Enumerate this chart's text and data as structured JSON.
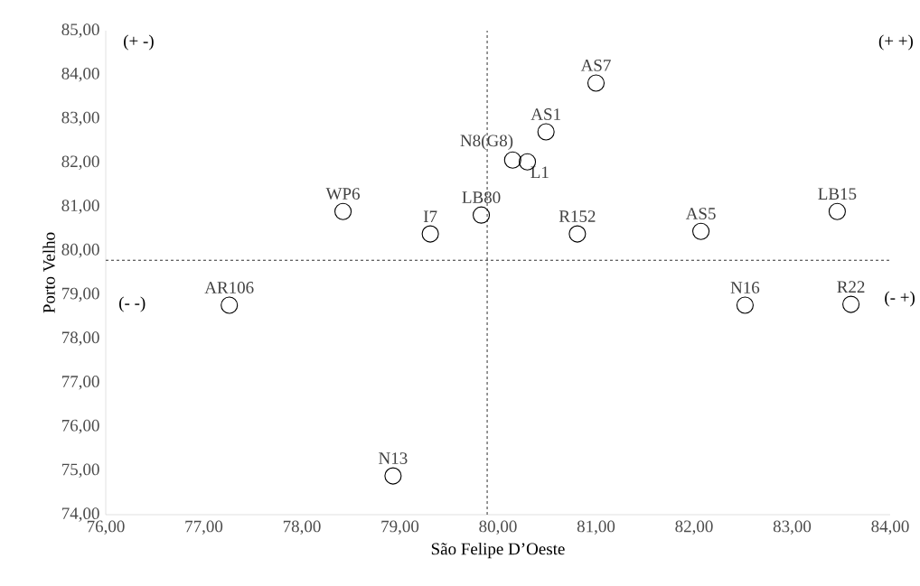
{
  "chart_data": {
    "type": "scatter",
    "xlabel": "São Felipe D’Oeste",
    "ylabel": "Porto Velho",
    "x": [
      77.26,
      78.42,
      79.31,
      79.83,
      80.15,
      80.3,
      80.49,
      81.0,
      80.81,
      82.07,
      83.46,
      82.52,
      83.6,
      78.93
    ],
    "values": [
      78.76,
      80.89,
      80.38,
      80.81,
      82.06,
      82.02,
      82.7,
      83.81,
      80.38,
      80.44,
      80.89,
      78.76,
      78.78,
      74.88
    ],
    "value_labels": [
      "AR106",
      "WP6",
      "I7",
      "LB80",
      "N8(G8)",
      "L1",
      "AS1",
      "AS7",
      "R152",
      "AS5",
      "LB15",
      "N16",
      "R22",
      "N13"
    ],
    "color": "#000000",
    "marker": "circle",
    "xlim": [
      76,
      84
    ],
    "ylim": [
      74,
      85
    ],
    "xticks": [
      {
        "value": 76,
        "label": "76,00"
      },
      {
        "value": 77,
        "label": "77,00"
      },
      {
        "value": 78,
        "label": "78,00"
      },
      {
        "value": 79,
        "label": "79,00"
      },
      {
        "value": 80,
        "label": "80,00"
      },
      {
        "value": 81,
        "label": "81,00"
      },
      {
        "value": 82,
        "label": "82,00"
      },
      {
        "value": 83,
        "label": "83,00"
      },
      {
        "value": 84,
        "label": "84,00"
      }
    ],
    "yticks": [
      {
        "value": 74,
        "label": "74,00"
      },
      {
        "value": 75,
        "label": "75,00"
      },
      {
        "value": 76,
        "label": "76,00"
      },
      {
        "value": 77,
        "label": "77,00"
      },
      {
        "value": 78,
        "label": "78,00"
      },
      {
        "value": 79,
        "label": "79,00"
      },
      {
        "value": 80,
        "label": "80,00"
      },
      {
        "value": 81,
        "label": "81,00"
      },
      {
        "value": 82,
        "label": "82,00"
      },
      {
        "value": 83,
        "label": "83,00"
      },
      {
        "value": 84,
        "label": "84,00"
      },
      {
        "value": 85,
        "label": "85,00"
      }
    ],
    "ref_lines": [
      {
        "axis": "x",
        "value": 79.89,
        "line_style": "dashed"
      },
      {
        "axis": "y",
        "value": 79.78,
        "line_style": "dashed"
      }
    ],
    "annotations": [
      "(+ -)",
      "(+ +)",
      "(- -)",
      "(- +)"
    ],
    "grid": false
  }
}
